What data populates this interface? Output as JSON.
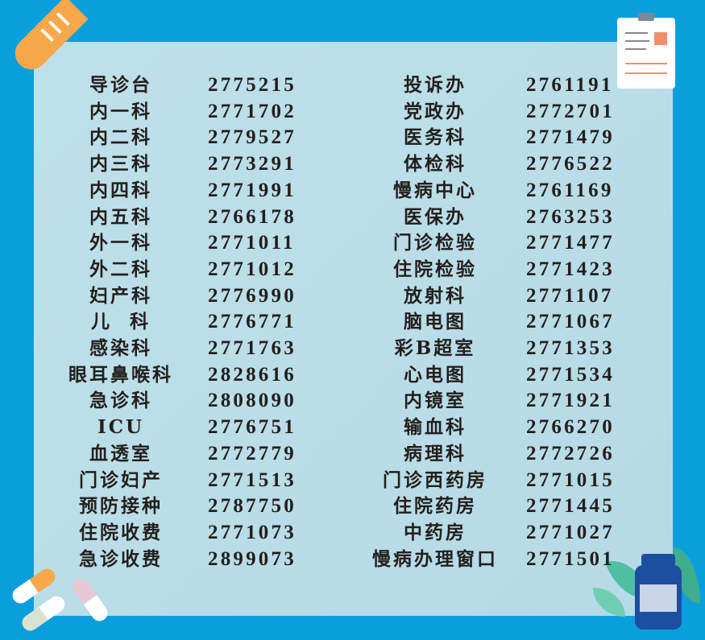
{
  "directory": {
    "left": [
      {
        "name": "导诊台",
        "phone": "2775215"
      },
      {
        "name": "内一科",
        "phone": "2771702"
      },
      {
        "name": "内二科",
        "phone": "2779527"
      },
      {
        "name": "内三科",
        "phone": "2773291"
      },
      {
        "name": "内四科",
        "phone": "2771991"
      },
      {
        "name": "内五科",
        "phone": "2766178"
      },
      {
        "name": "外一科",
        "phone": "2771011"
      },
      {
        "name": "外二科",
        "phone": "2771012"
      },
      {
        "name": "妇产科",
        "phone": "2776990"
      },
      {
        "name": "儿  科",
        "phone": "2776771"
      },
      {
        "name": "感染科",
        "phone": "2771763"
      },
      {
        "name": "眼耳鼻喉科",
        "phone": "2828616"
      },
      {
        "name": "急诊科",
        "phone": "2808090"
      },
      {
        "name": "ICU",
        "phone": "2776751"
      },
      {
        "name": "血透室",
        "phone": "2772779"
      },
      {
        "name": "门诊妇产",
        "phone": "2771513"
      },
      {
        "name": "预防接种",
        "phone": "2787750"
      },
      {
        "name": "住院收费",
        "phone": "2771073"
      },
      {
        "name": "急诊收费",
        "phone": "2899073"
      }
    ],
    "right": [
      {
        "name": "投诉办",
        "phone": "2761191"
      },
      {
        "name": "党政办",
        "phone": "2772701"
      },
      {
        "name": "医务科",
        "phone": "2771479"
      },
      {
        "name": "体检科",
        "phone": "2776522"
      },
      {
        "name": "慢病中心",
        "phone": "2761169"
      },
      {
        "name": "医保办",
        "phone": "2763253"
      },
      {
        "name": "门诊检验",
        "phone": "2771477"
      },
      {
        "name": "住院检验",
        "phone": "2771423"
      },
      {
        "name": "放射科",
        "phone": "2771107"
      },
      {
        "name": "脑电图",
        "phone": "2771067"
      },
      {
        "name": "彩B超室",
        "phone": "2771353"
      },
      {
        "name": "心电图",
        "phone": "2771534"
      },
      {
        "name": "内镜室",
        "phone": "2771921"
      },
      {
        "name": "输血科",
        "phone": "2766270"
      },
      {
        "name": "病理科",
        "phone": "2772726"
      },
      {
        "name": "门诊西药房",
        "phone": "2771015"
      },
      {
        "name": "住院药房",
        "phone": "2771445"
      },
      {
        "name": "中药房",
        "phone": "2771027"
      },
      {
        "name": "慢病办理窗口",
        "phone": "2771501"
      }
    ]
  },
  "colors": {
    "background": "#0a9fdc",
    "panel": "#bcdde8",
    "text": "#231f1c",
    "accent_orange": "#f7a84a"
  },
  "icons": [
    "test-tube-icon",
    "clipboard-icon",
    "pills-icon",
    "medicine-bottle-icon"
  ]
}
